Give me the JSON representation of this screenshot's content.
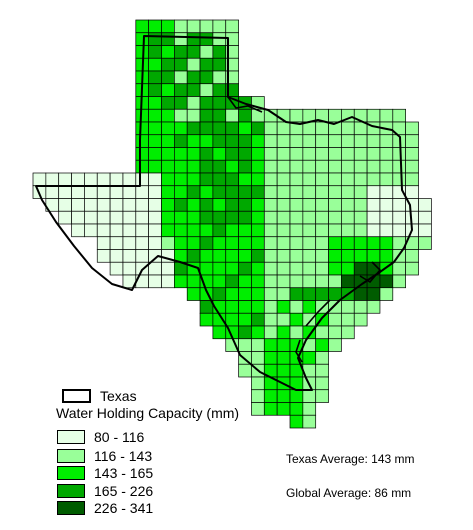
{
  "legend": {
    "outline_label": "Texas",
    "title": "Water Holding Capacity (mm)",
    "classes": [
      {
        "label": "80 - 116",
        "color": "#e6ffe6"
      },
      {
        "label": "116 - 143",
        "color": "#99ff99"
      },
      {
        "label": "143 - 165",
        "color": "#00ee00"
      },
      {
        "label": "165 - 226",
        "color": "#00a800"
      },
      {
        "label": "226 - 341",
        "color": "#005c00"
      }
    ]
  },
  "stats": {
    "texas_average": "Texas Average: 143 mm",
    "global_average": "Global Average: 86 mm"
  },
  "colors": {
    "grid_line": "#000000",
    "background": "#ffffff"
  }
}
